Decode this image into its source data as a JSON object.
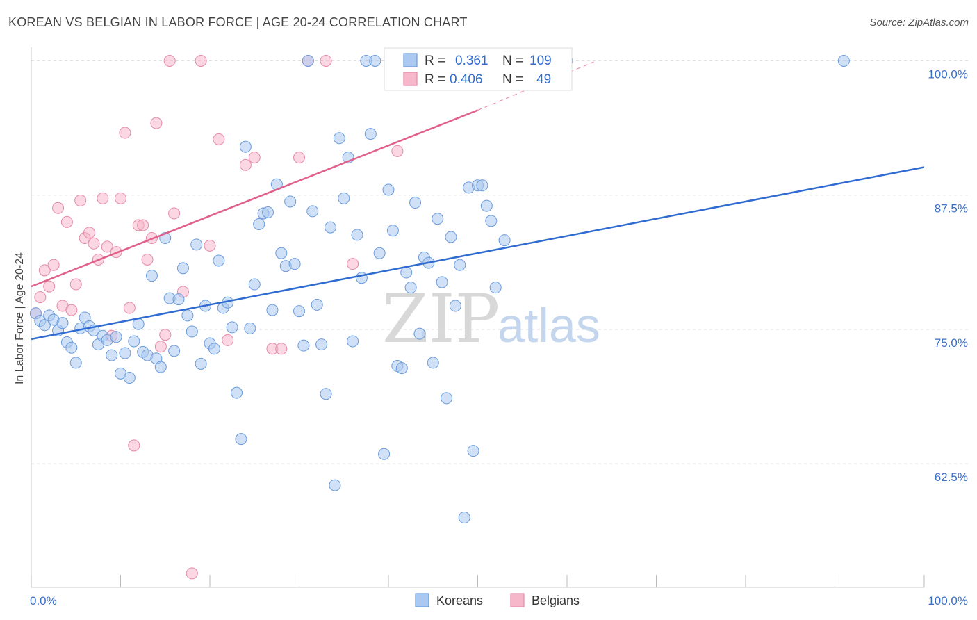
{
  "title": "KOREAN VS BELGIAN IN LABOR FORCE | AGE 20-24 CORRELATION CHART",
  "source": "Source: ZipAtlas.com",
  "watermark": {
    "zip": "ZIP",
    "atlas": "atlas"
  },
  "colors": {
    "koreans_fill": "#aac8f0",
    "koreans_stroke": "#6a9bdc",
    "koreans_line": "#2f6bd0",
    "belgians_fill": "#f6b7ca",
    "belgians_stroke": "#e58aa6",
    "belgians_line": "#e0608a",
    "grid": "#dddddd",
    "axis_label": "#3b6fc4"
  },
  "legend": {
    "koreans": {
      "r_label": "R =",
      "r_value": "0.361",
      "n_label": "N =",
      "n_value": "109"
    },
    "belgians": {
      "r_label": "R =",
      "r_value": "0.406",
      "n_label": "N =",
      "n_value": "49"
    }
  },
  "bottom_legend": [
    "Koreans",
    "Belgians"
  ],
  "chart_data": {
    "type": "scatter",
    "title": "KOREAN VS BELGIAN IN LABOR FORCE | AGE 20-24 CORRELATION CHART",
    "xlabel": "",
    "ylabel": "In Labor Force | Age 20-24",
    "xlim": [
      0,
      100
    ],
    "ylim": [
      51,
      101
    ],
    "x_tick_labels": [
      "0.0%",
      "100.0%"
    ],
    "y_ticks": [
      62.5,
      75.0,
      87.5,
      100.0
    ],
    "y_tick_labels": [
      "62.5%",
      "75.0%",
      "87.5%",
      "100.0%"
    ],
    "grid": true,
    "legend_position": "top-center",
    "series": [
      {
        "name": "Koreans",
        "trend": {
          "x": [
            0,
            100
          ],
          "y": [
            74.1,
            90.1
          ]
        },
        "points": [
          [
            0.5,
            76.5
          ],
          [
            1.0,
            75.8
          ],
          [
            1.5,
            75.4
          ],
          [
            2.0,
            76.3
          ],
          [
            2.5,
            75.9
          ],
          [
            3.0,
            74.9
          ],
          [
            3.5,
            75.6
          ],
          [
            4.0,
            73.8
          ],
          [
            4.5,
            73.3
          ],
          [
            5.0,
            71.9
          ],
          [
            5.5,
            75.1
          ],
          [
            6.0,
            76.1
          ],
          [
            6.5,
            75.3
          ],
          [
            7.0,
            74.9
          ],
          [
            7.5,
            73.6
          ],
          [
            8.0,
            74.4
          ],
          [
            8.5,
            74.0
          ],
          [
            9.0,
            72.6
          ],
          [
            9.5,
            74.3
          ],
          [
            10.0,
            70.9
          ],
          [
            10.5,
            72.8
          ],
          [
            11.0,
            70.5
          ],
          [
            11.5,
            73.9
          ],
          [
            12.0,
            75.5
          ],
          [
            12.5,
            72.9
          ],
          [
            13.0,
            72.6
          ],
          [
            13.5,
            80.0
          ],
          [
            14.0,
            72.3
          ],
          [
            14.5,
            71.5
          ],
          [
            15.0,
            83.5
          ],
          [
            15.5,
            77.9
          ],
          [
            16.0,
            73.0
          ],
          [
            16.5,
            77.8
          ],
          [
            17.0,
            80.7
          ],
          [
            17.5,
            76.3
          ],
          [
            18.0,
            74.8
          ],
          [
            18.5,
            82.9
          ],
          [
            19.0,
            71.8
          ],
          [
            19.5,
            77.2
          ],
          [
            20.0,
            73.7
          ],
          [
            20.5,
            73.2
          ],
          [
            21.0,
            81.4
          ],
          [
            21.5,
            77.0
          ],
          [
            22.0,
            77.5
          ],
          [
            22.5,
            75.2
          ],
          [
            23.0,
            69.1
          ],
          [
            23.5,
            64.8
          ],
          [
            24.0,
            92.0
          ],
          [
            24.5,
            75.1
          ],
          [
            25.0,
            79.2
          ],
          [
            25.5,
            84.8
          ],
          [
            26.0,
            85.8
          ],
          [
            26.5,
            85.9
          ],
          [
            27.0,
            76.8
          ],
          [
            27.5,
            88.5
          ],
          [
            28.0,
            82.1
          ],
          [
            28.5,
            80.9
          ],
          [
            29.0,
            86.9
          ],
          [
            29.5,
            81.1
          ],
          [
            30.0,
            76.7
          ],
          [
            30.5,
            73.5
          ],
          [
            31.0,
            100.0
          ],
          [
            31.5,
            86.0
          ],
          [
            32.0,
            77.3
          ],
          [
            32.5,
            73.6
          ],
          [
            33.0,
            69.0
          ],
          [
            33.5,
            84.5
          ],
          [
            34.0,
            60.5
          ],
          [
            34.5,
            92.8
          ],
          [
            35.0,
            87.2
          ],
          [
            35.5,
            91.0
          ],
          [
            36.0,
            73.9
          ],
          [
            36.5,
            83.8
          ],
          [
            37.0,
            79.8
          ],
          [
            37.5,
            100.0
          ],
          [
            38.0,
            93.2
          ],
          [
            38.5,
            100.0
          ],
          [
            39.0,
            82.1
          ],
          [
            39.5,
            63.4
          ],
          [
            40.0,
            88.0
          ],
          [
            40.5,
            84.2
          ],
          [
            41.0,
            71.6
          ],
          [
            41.5,
            71.4
          ],
          [
            42.0,
            80.3
          ],
          [
            42.5,
            78.9
          ],
          [
            43.0,
            86.8
          ],
          [
            43.5,
            74.6
          ],
          [
            44.0,
            81.7
          ],
          [
            44.5,
            81.2
          ],
          [
            45.0,
            71.9
          ],
          [
            45.5,
            85.3
          ],
          [
            46.0,
            79.4
          ],
          [
            46.5,
            68.6
          ],
          [
            47.0,
            83.6
          ],
          [
            47.5,
            77.2
          ],
          [
            48.0,
            81.0
          ],
          [
            48.5,
            57.5
          ],
          [
            49.0,
            88.2
          ],
          [
            49.5,
            63.7
          ],
          [
            50.0,
            88.4
          ],
          [
            50.5,
            88.4
          ],
          [
            51.0,
            86.5
          ],
          [
            51.5,
            85.1
          ],
          [
            52.0,
            78.9
          ],
          [
            53.0,
            83.3
          ],
          [
            54.0,
            100.0
          ],
          [
            55.0,
            100.0
          ],
          [
            60.0,
            100.0
          ],
          [
            91.0,
            100.0
          ]
        ]
      },
      {
        "name": "Belgians",
        "trend": {
          "x": [
            0,
            50
          ],
          "y": [
            79.0,
            95.4
          ]
        },
        "trend_dashed": {
          "x": [
            50,
            63
          ],
          "y": [
            95.4,
            99.9
          ]
        },
        "points": [
          [
            0.5,
            76.5
          ],
          [
            1.0,
            78.0
          ],
          [
            1.5,
            80.5
          ],
          [
            2.0,
            79.0
          ],
          [
            2.5,
            81.0
          ],
          [
            3.0,
            86.3
          ],
          [
            3.5,
            77.2
          ],
          [
            4.0,
            85.0
          ],
          [
            4.5,
            76.8
          ],
          [
            5.0,
            79.2
          ],
          [
            5.5,
            87.0
          ],
          [
            6.0,
            83.5
          ],
          [
            6.5,
            84.0
          ],
          [
            7.0,
            83.0
          ],
          [
            7.5,
            81.5
          ],
          [
            8.0,
            87.2
          ],
          [
            8.5,
            82.7
          ],
          [
            9.0,
            74.4
          ],
          [
            9.5,
            82.2
          ],
          [
            10.0,
            87.2
          ],
          [
            10.5,
            93.3
          ],
          [
            11.0,
            77.0
          ],
          [
            11.5,
            64.2
          ],
          [
            12.0,
            84.7
          ],
          [
            12.5,
            84.7
          ],
          [
            13.0,
            81.5
          ],
          [
            13.5,
            83.5
          ],
          [
            14.0,
            94.2
          ],
          [
            14.5,
            73.4
          ],
          [
            15.0,
            74.5
          ],
          [
            15.5,
            100.0
          ],
          [
            16.0,
            85.8
          ],
          [
            17.0,
            78.5
          ],
          [
            18.0,
            52.3
          ],
          [
            19.0,
            100.0
          ],
          [
            20.0,
            82.8
          ],
          [
            21.0,
            92.7
          ],
          [
            22.0,
            74.0
          ],
          [
            24.0,
            90.3
          ],
          [
            25.0,
            91.0
          ],
          [
            27.0,
            73.2
          ],
          [
            28.0,
            73.2
          ],
          [
            30.0,
            91.0
          ],
          [
            31.0,
            100.0
          ],
          [
            33.0,
            100.0
          ],
          [
            36.0,
            81.1
          ],
          [
            41.0,
            91.6
          ],
          [
            49.0,
            100.0
          ],
          [
            52.0,
            100.0
          ]
        ]
      }
    ]
  }
}
